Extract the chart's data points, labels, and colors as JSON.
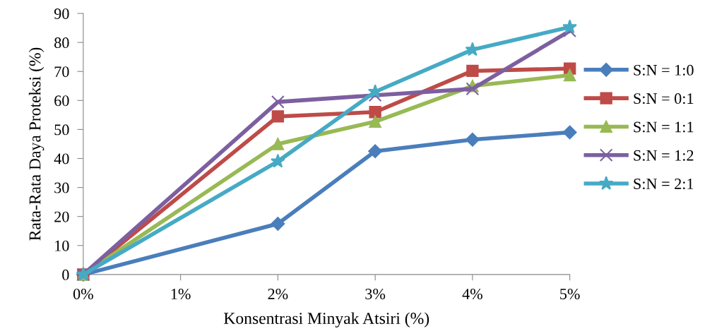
{
  "chart_data": {
    "type": "line",
    "xlabel": "Konsentrasi Minyak Atsiri (%)",
    "ylabel": "Rata-Rata Daya Proteksi (%)",
    "x": [
      0,
      2,
      3,
      4,
      5
    ],
    "xlim": [
      0,
      5
    ],
    "xticks": [
      {
        "value": 0,
        "label": "0%"
      },
      {
        "value": 1,
        "label": "1%"
      },
      {
        "value": 2,
        "label": "2%"
      },
      {
        "value": 3,
        "label": "3%"
      },
      {
        "value": 4,
        "label": "4%"
      },
      {
        "value": 5,
        "label": "5%"
      }
    ],
    "ylim": [
      0,
      90
    ],
    "yticks": [
      0,
      10,
      20,
      30,
      40,
      50,
      60,
      70,
      80,
      90
    ],
    "grid": false,
    "legend": "right",
    "line_style": "solid",
    "series": [
      {
        "name": "S:N = 1:0",
        "color": "#4a7ebb",
        "marker": "diamond",
        "values": [
          0,
          17.5,
          42.5,
          46.5,
          49
        ]
      },
      {
        "name": "S:N = 0:1",
        "color": "#be4b48",
        "marker": "square",
        "values": [
          0,
          54.5,
          56,
          70.2,
          71
        ]
      },
      {
        "name": "S:N = 1:1",
        "color": "#98b954",
        "marker": "triangle",
        "values": [
          0,
          45,
          52.7,
          65,
          68.7
        ]
      },
      {
        "name": "S:N = 1:2",
        "color": "#7d5fa0",
        "marker": "cross",
        "values": [
          0,
          59.5,
          61.8,
          64,
          84
        ]
      },
      {
        "name": "S:N = 2:1",
        "color": "#46aac5",
        "marker": "star",
        "values": [
          0,
          39,
          63,
          77.5,
          85.3
        ]
      }
    ]
  }
}
